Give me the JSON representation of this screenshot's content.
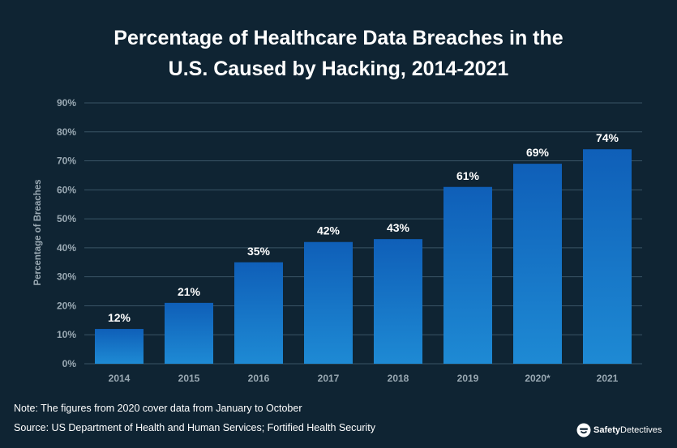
{
  "chart_data": {
    "type": "bar",
    "title_line1": "Percentage of Healthcare Data Breaches in the",
    "title_line2": "U.S. Caused by Hacking, 2014-2021",
    "xlabel": "",
    "ylabel": "Percentage of Breaches",
    "categories": [
      "2014",
      "2015",
      "2016",
      "2017",
      "2018",
      "2019",
      "2020*",
      "2021"
    ],
    "values": [
      12,
      21,
      35,
      42,
      43,
      61,
      69,
      74
    ],
    "data_labels": [
      "12%",
      "21%",
      "35%",
      "42%",
      "43%",
      "61%",
      "69%",
      "74%"
    ],
    "ylim": [
      0,
      90
    ],
    "yticks": [
      "0%",
      "10%",
      "20%",
      "30%",
      "40%",
      "50%",
      "60%",
      "70%",
      "80%",
      "90%"
    ],
    "grid": true,
    "colors": {
      "background": "#0f2433",
      "bar_top": "#0f5fb8",
      "bar_bottom": "#1e8ad4",
      "grid": "#3a5566",
      "axis_text": "#9aa9b3",
      "label_text": "#ffffff"
    }
  },
  "footer": {
    "note": "Note: The figures from 2020 cover data from January to October",
    "source": "Source: US Department of Health and Human Services; Fortified Health Security",
    "brand_prefix": "Safety",
    "brand_suffix": "Detectives",
    "brand_icon": "safetydetectives-logo-icon"
  }
}
